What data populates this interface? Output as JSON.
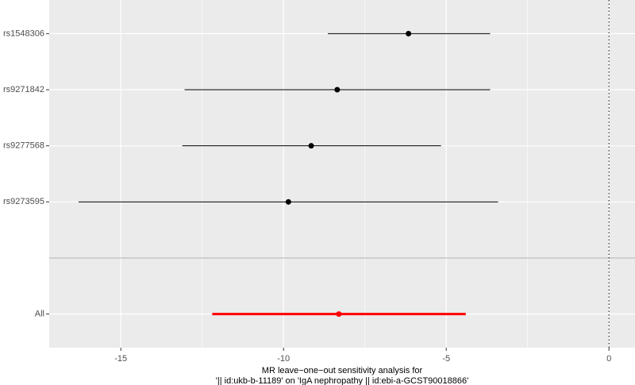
{
  "chart_data": {
    "type": "forest",
    "xlabel": [
      "MR leave−one−out sensitivity analysis for",
      "'|| id:ukb-b-11189' on 'IgA nephropathy || id:ebi-a-GCST90018866'"
    ],
    "categories": [
      "rs1548306",
      "rs9271842",
      "rs9277568",
      "rs9273595",
      null,
      "All"
    ],
    "values": [
      -6.16,
      -8.35,
      -9.15,
      -9.85,
      null,
      -8.3
    ],
    "lower": [
      -8.64,
      -13.04,
      -13.11,
      -16.3,
      null,
      -12.19
    ],
    "upper": [
      -3.65,
      -3.65,
      -5.16,
      -3.41,
      null,
      -4.4
    ],
    "colors": [
      "#000000",
      "#000000",
      "#000000",
      "#000000",
      null,
      "#ff0000"
    ],
    "xlim": [
      -17.2,
      0.8
    ],
    "xticks": [
      -15,
      -10,
      -5,
      0
    ],
    "minor_xticks": [
      -12.5,
      -7.5,
      -2.5
    ],
    "vline": 0,
    "grid": true
  }
}
